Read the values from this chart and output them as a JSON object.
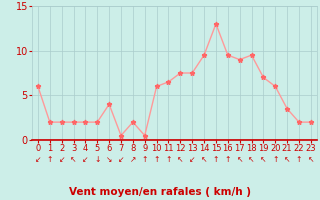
{
  "x": [
    0,
    1,
    2,
    3,
    4,
    5,
    6,
    7,
    8,
    9,
    10,
    11,
    12,
    13,
    14,
    15,
    16,
    17,
    18,
    19,
    20,
    21,
    22,
    23
  ],
  "y": [
    6,
    2,
    2,
    2,
    2,
    2,
    4,
    0.5,
    2,
    0.5,
    6,
    6.5,
    7.5,
    7.5,
    9.5,
    13,
    9.5,
    9,
    9.5,
    7,
    6,
    3.5,
    2,
    2
  ],
  "arrows": [
    "↙",
    "↑",
    "↙",
    "↖",
    "↙",
    "↓",
    "↘",
    "↙",
    "↗",
    "↑",
    "↑",
    "↑",
    "↖",
    "↙",
    "↖",
    "↑",
    "↑",
    "↖",
    "↖",
    "↖",
    "↑",
    "↖",
    "↑",
    "↖"
  ],
  "line_color": "#ff9999",
  "marker_color": "#ff6666",
  "bg_color": "#cceee8",
  "grid_color": "#aacccc",
  "xlabel": "Vent moyen/en rafales ( km/h )",
  "ylim": [
    0,
    15
  ],
  "xlim_min": -0.5,
  "xlim_max": 23.5,
  "yticks": [
    0,
    5,
    10,
    15
  ],
  "xticks": [
    0,
    1,
    2,
    3,
    4,
    5,
    6,
    7,
    8,
    9,
    10,
    11,
    12,
    13,
    14,
    15,
    16,
    17,
    18,
    19,
    20,
    21,
    22,
    23
  ],
  "axis_color": "#cc0000",
  "tick_color": "#cc0000",
  "label_color": "#cc0000",
  "font_size": 6.0,
  "xlabel_fontsize": 7.5,
  "arrow_fontsize": 5.5,
  "linewidth": 1.0,
  "markersize": 3.5,
  "red_line_color": "#cc0000"
}
